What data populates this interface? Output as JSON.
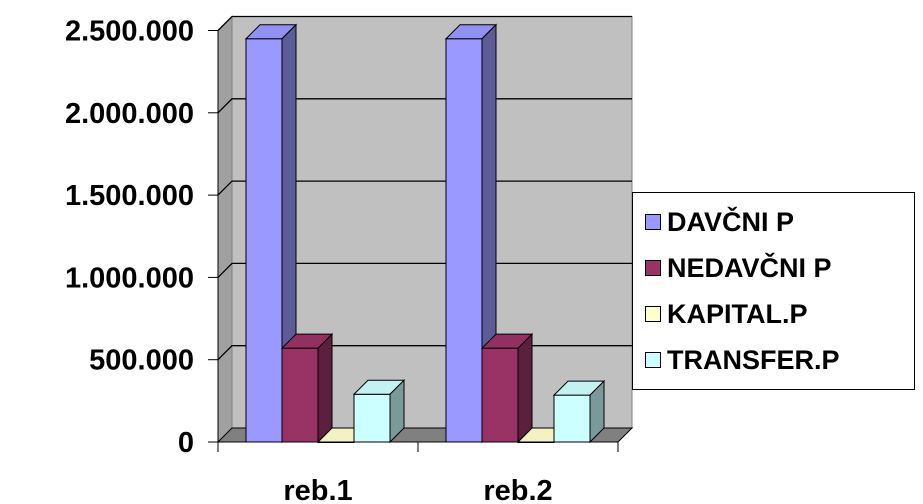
{
  "chart_data": {
    "type": "bar",
    "categories": [
      "reb.1",
      "reb.2"
    ],
    "series": [
      {
        "name": "DAVČNI P",
        "values": [
          2450000,
          2450000
        ],
        "color": "#9999ff"
      },
      {
        "name": "NEDAVČNI P",
        "values": [
          570000,
          570000
        ],
        "color": "#993366"
      },
      {
        "name": "KAPITAL.P",
        "values": [
          0,
          0
        ],
        "color": "#ffffcc"
      },
      {
        "name": "TRANSFER.P",
        "values": [
          290000,
          285000
        ],
        "color": "#ccffff"
      }
    ],
    "yticks": [
      "0",
      "500.000",
      "1.000.000",
      "1.500.000",
      "2.000.000",
      "2.500.000"
    ],
    "ylim": [
      0,
      2500000
    ],
    "grid": true,
    "style": "3d-column",
    "legend": "right"
  }
}
